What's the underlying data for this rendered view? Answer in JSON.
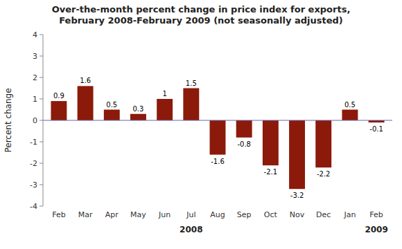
{
  "chart_data": {
    "type": "bar",
    "title": "Over-the-month percent change in price index for exports,\nFebruary 2008-February 2009 (not seasonally adjusted)",
    "categories": [
      "Feb",
      "Mar",
      "Apr",
      "May",
      "Jun",
      "Jul",
      "Aug",
      "Sep",
      "Oct",
      "Nov",
      "Dec",
      "Jan",
      "Feb"
    ],
    "values": [
      0.9,
      1.6,
      0.5,
      0.3,
      1.0,
      1.5,
      -1.6,
      -0.8,
      -2.1,
      -3.2,
      -2.2,
      0.5,
      -0.1
    ],
    "color": "#8B1A0A",
    "ylim": [
      -4,
      4
    ],
    "yticks": [
      -4,
      -3,
      -2,
      -1,
      0,
      1,
      2,
      3,
      4
    ],
    "ylabel": "Percent change",
    "data_labels": true,
    "grid": false,
    "annotations": [
      {
        "text": "2008",
        "x": 5.0
      },
      {
        "text": "2009",
        "x": 12.0
      }
    ]
  }
}
